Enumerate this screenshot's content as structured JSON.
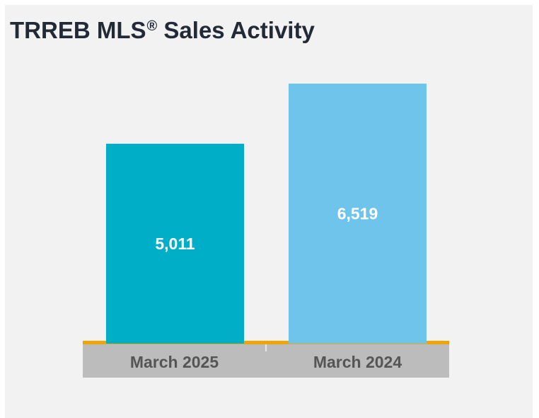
{
  "title": {
    "text": "TRREB MLS",
    "sup": "®",
    "rest": " Sales Activity"
  },
  "chart_data": {
    "type": "bar",
    "title": "TRREB MLS® Sales Activity",
    "categories": [
      "March 2025",
      "March 2024"
    ],
    "values": [
      5011,
      6519
    ],
    "value_labels": [
      "5,011",
      "6,519"
    ],
    "colors": [
      "#00aec7",
      "#6ec4ea"
    ],
    "xlabel": "",
    "ylabel": "",
    "ylim": [
      0,
      7500
    ],
    "grid": false,
    "legend": "none"
  },
  "colors": {
    "panel": "#f2f2f2",
    "axis_band": "#bcbcbc",
    "baseline": "#f0a500",
    "title": "#222a35"
  }
}
